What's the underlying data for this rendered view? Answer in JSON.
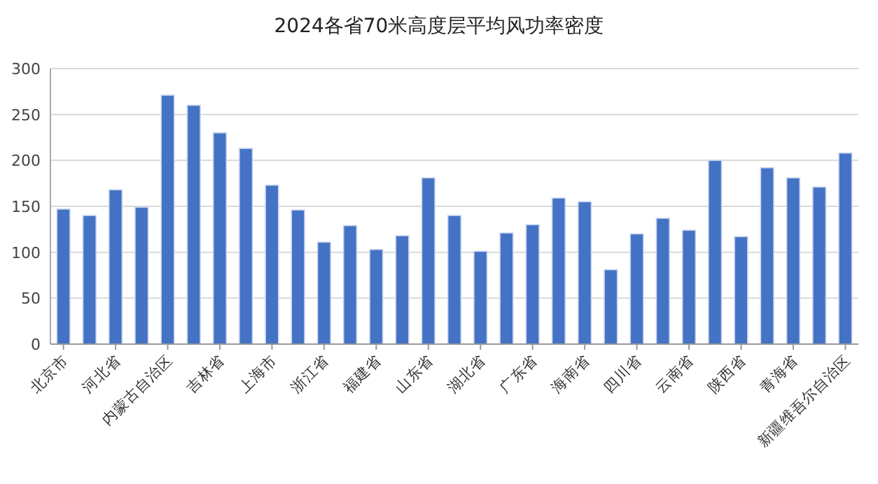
{
  "chart_data": {
    "type": "bar",
    "title": "2024各省70米高度层平均风功率密度",
    "categories": [
      "北京市",
      null,
      "河北省",
      null,
      "内蒙古自治区",
      null,
      "吉林省",
      null,
      "上海市",
      null,
      "浙江省",
      null,
      "福建省",
      null,
      "山东省",
      null,
      "湖北省",
      null,
      "广东省",
      null,
      "海南省",
      null,
      "四川省",
      null,
      "云南省",
      null,
      "陕西省",
      null,
      "青海省",
      null,
      "新疆维吾尔自治区"
    ],
    "values": [
      147,
      140,
      168,
      149,
      271,
      260,
      230,
      213,
      173,
      146,
      111,
      129,
      103,
      118,
      181,
      140,
      101,
      121,
      130,
      159,
      155,
      81,
      120,
      137,
      124,
      200,
      117,
      192,
      181,
      171,
      208
    ],
    "color": "#4472c4",
    "ylim": [
      0,
      300
    ],
    "yticks": [
      0,
      50,
      100,
      150,
      200,
      250,
      300
    ],
    "grid": "y"
  }
}
